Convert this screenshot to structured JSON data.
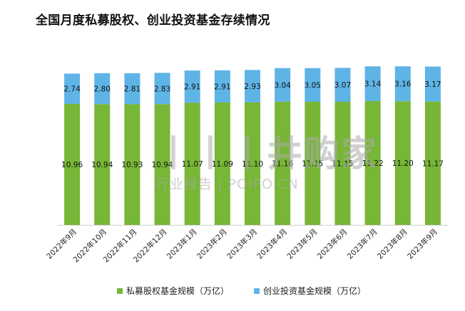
{
  "title": "全国月度私募股权、创业投资基金存续情况",
  "colors": {
    "pe": "#77B636",
    "vc": "#5FB4E6"
  },
  "watermark": {
    "main": "丨丨丨井购家",
    "sub": "行业报告 | POIPO.CN"
  },
  "chart_data": {
    "type": "bar",
    "stacked": true,
    "title": "全国月度私募股权、创业投资基金存续情况",
    "categories": [
      "2022年9月",
      "2022年10月",
      "2022年11月",
      "2022年12月",
      "2023年1月",
      "2023年2月",
      "2023年3月",
      "2023年4月",
      "2023年5月",
      "2023年6月",
      "2023年7月",
      "2023年8月",
      "2023年9月"
    ],
    "series": [
      {
        "name": "私募股权基金规模（万亿）",
        "values": [
          10.96,
          10.94,
          10.93,
          10.94,
          11.07,
          11.09,
          11.1,
          11.16,
          11.15,
          11.15,
          11.22,
          11.2,
          11.17
        ]
      },
      {
        "name": "创业投资基金规模（万亿）",
        "values": [
          2.74,
          2.8,
          2.81,
          2.83,
          2.91,
          2.91,
          2.93,
          3.04,
          3.05,
          3.07,
          3.14,
          3.16,
          3.17
        ]
      }
    ],
    "ylim": [
      0,
      16.5
    ],
    "grid": false,
    "legend": "bottom"
  }
}
